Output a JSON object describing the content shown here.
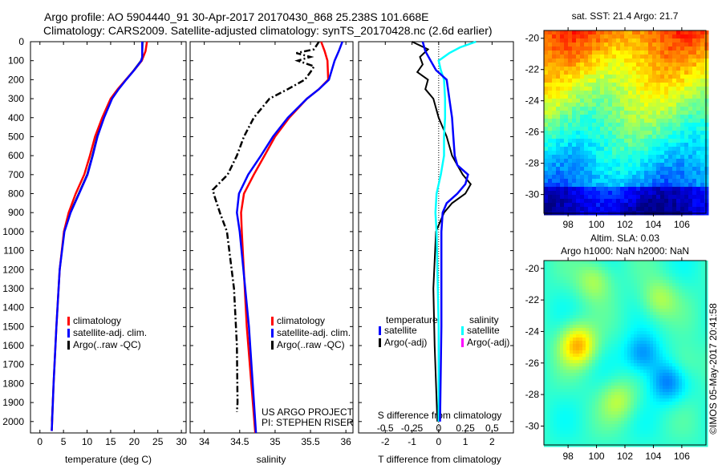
{
  "title_line1": "Argo profile: AO 5904440_91 30-Apr-2017 20170430_868 25.238S 101.668E",
  "title_line2": "Climatology: CARS2009. Satellite-adjusted climatology: synTS_20170428.nc (2.6d earlier)",
  "timestamp": "©IMOS 05-May-2017 20:41:58",
  "credit_line1": "US ARGO PROJECT",
  "credit_line2": "PI: STEPHEN RISER",
  "colors": {
    "climatology": "#ff0000",
    "satellite": "#0000ff",
    "argo": "#000000",
    "salinity_satellite": "#00ffff",
    "salinity_argo": "#ff00ff"
  },
  "chart_data": [
    {
      "type": "line",
      "name": "temperature",
      "xlabel": "temperature (deg C)",
      "ylabel": "",
      "xlim": [
        -2,
        31
      ],
      "ylim": [
        2060,
        0
      ],
      "xticks": [
        "0",
        "5",
        "10",
        "15",
        "20",
        "25",
        "30"
      ],
      "yticks": [
        "0",
        "100",
        "200",
        "300",
        "400",
        "500",
        "600",
        "700",
        "800",
        "900",
        "1000",
        "1100",
        "1200",
        "1300",
        "1400",
        "1500",
        "1600",
        "1700",
        "1800",
        "1900",
        "2000"
      ],
      "legend": [
        "climatology",
        "satellite-adj. clim.",
        "Argo(..raw -QC)"
      ],
      "series": [
        {
          "name": "climatology",
          "depth": [
            0,
            50,
            100,
            150,
            200,
            250,
            300,
            400,
            500,
            600,
            700,
            800,
            900,
            1000,
            1200,
            1500,
            1800,
            2050
          ],
          "values": [
            22.7,
            22.4,
            21.6,
            20,
            18.2,
            16.5,
            15,
            13.2,
            11.7,
            10.6,
            9.4,
            7.6,
            6.1,
            5.1,
            4.2,
            3.5,
            2.9,
            2.5
          ]
        },
        {
          "name": "satellite-adj. clim.",
          "depth": [
            0,
            80,
            100,
            150,
            200,
            250,
            300,
            400,
            500,
            600,
            700,
            800,
            900,
            1000,
            1200,
            1500,
            1800,
            2050
          ],
          "values": [
            21.7,
            21.7,
            21.5,
            20,
            18.3,
            16.7,
            15.3,
            13.6,
            12.2,
            11.2,
            10.1,
            8.3,
            6.5,
            5.2,
            4.2,
            3.5,
            2.9,
            2.5
          ]
        },
        {
          "name": "Argo(..raw -QC)",
          "depth": [
            0,
            80,
            100,
            150,
            200,
            250,
            300,
            400,
            500,
            600,
            700,
            800,
            900,
            1000,
            1200,
            1500,
            1800,
            2000
          ],
          "values": [
            21.8,
            21.7,
            21.4,
            19.9,
            18.2,
            16.6,
            15.2,
            13.5,
            12.1,
            11.1,
            10,
            8.2,
            6.4,
            5.1,
            4.2,
            3.5,
            2.9,
            2.5
          ]
        }
      ]
    },
    {
      "type": "line",
      "name": "salinity",
      "xlabel": "salinity",
      "xlim": [
        33.8,
        36.1
      ],
      "ylim": [
        2060,
        0
      ],
      "xticks": [
        "34",
        "34.5",
        "35",
        "35.5",
        "36"
      ],
      "legend": [
        "climatology",
        "satellite-adj. clim.",
        "Argo(..raw -QC)"
      ],
      "series": [
        {
          "name": "climatology",
          "depth": [
            0,
            50,
            100,
            200,
            250,
            300,
            400,
            500,
            600,
            700,
            800,
            900,
            1000,
            1500,
            2060
          ],
          "values": [
            35.65,
            35.7,
            35.74,
            35.75,
            35.62,
            35.45,
            35.2,
            35.0,
            34.85,
            34.7,
            34.56,
            34.52,
            34.53,
            34.6,
            34.72
          ]
        },
        {
          "name": "satellite-adj. clim.",
          "depth": [
            0,
            50,
            100,
            200,
            250,
            300,
            400,
            500,
            600,
            700,
            800,
            900,
            1000,
            1500,
            2060
          ],
          "values": [
            35.95,
            35.9,
            35.84,
            35.76,
            35.62,
            35.45,
            35.18,
            34.97,
            34.8,
            34.62,
            34.49,
            34.46,
            34.5,
            34.63,
            34.73
          ]
        },
        {
          "name": "Argo(..raw -QC)",
          "depth": [
            0,
            40,
            60,
            80,
            100,
            130,
            160,
            200,
            250,
            300,
            400,
            500,
            600,
            700,
            780,
            820,
            900,
            1000,
            1300,
            1600,
            1900,
            1950
          ],
          "values": [
            35.62,
            35.55,
            35.3,
            35.5,
            35.32,
            35.55,
            35.5,
            35.42,
            35.18,
            34.92,
            34.7,
            34.56,
            34.46,
            34.33,
            34.12,
            34.15,
            34.22,
            34.32,
            34.42,
            34.46,
            34.47,
            34.46
          ]
        }
      ]
    },
    {
      "type": "line",
      "name": "difference",
      "xlabel": "T difference from climatology",
      "xlabel2": "S difference from climatology",
      "xlim": [
        -3,
        2.8
      ],
      "ylim": [
        2060,
        0
      ],
      "xticks": [
        "-2",
        "-1",
        "0",
        "1",
        "2"
      ],
      "xticks2": [
        "-0.5",
        "-0.25",
        "0",
        "0.25",
        "0.5"
      ],
      "legend_title_t": "temperature",
      "legend_title_s": "salinity",
      "legend_t": [
        "satellite",
        "Argo(-adj)"
      ],
      "legend_s": [
        "satellite",
        "Argo(-adj)"
      ],
      "series": [
        {
          "name": "T satellite",
          "units": "degC",
          "depth": [
            0,
            50,
            100,
            150,
            200,
            300,
            400,
            500,
            600,
            650,
            700,
            750,
            800,
            850,
            900,
            1000,
            1500,
            2000
          ],
          "values": [
            -0.6,
            -0.5,
            -0.3,
            -0.1,
            0.3,
            0.4,
            0.5,
            0.55,
            0.6,
            0.7,
            1.1,
            1.0,
            0.7,
            0.3,
            0.15,
            0.1,
            0.1,
            0.05
          ]
        },
        {
          "name": "T Argo(-adj)",
          "units": "degC",
          "depth": [
            0,
            40,
            80,
            120,
            160,
            200,
            250,
            300,
            400,
            500,
            600,
            650,
            700,
            750,
            800,
            850,
            900,
            1000,
            1300,
            1600,
            2000
          ],
          "values": [
            -1.0,
            -0.4,
            -0.7,
            -0.6,
            -0.8,
            -0.4,
            -0.5,
            -0.2,
            0,
            0.3,
            0.5,
            0.7,
            0.9,
            1.2,
            1.0,
            0.5,
            0.2,
            -0.1,
            -0.2,
            -0.15,
            -0.05
          ]
        },
        {
          "name": "S satellite",
          "units": "psu",
          "depth": [
            0,
            30,
            60,
            100,
            150,
            200,
            300,
            400,
            500,
            600,
            700,
            800,
            900,
            1000,
            1500,
            2000
          ],
          "values": [
            0.35,
            0.2,
            0.1,
            0.0,
            0.02,
            0.05,
            0.06,
            0.06,
            0.05,
            0.05,
            0.02,
            -0.02,
            -0.03,
            -0.02,
            0,
            0
          ]
        }
      ]
    },
    {
      "type": "heatmap",
      "name": "sst-map",
      "title": "sat. SST: 21.4 Argo: 21.7",
      "xticks": [
        "98",
        "100",
        "102",
        "104",
        "106"
      ],
      "yticks": [
        "-20",
        "-22",
        "-24",
        "-26",
        "-28",
        "-30"
      ],
      "xlim": [
        96.3,
        107.7
      ],
      "ylim": [
        -31.2,
        -19.5
      ]
    },
    {
      "type": "heatmap",
      "name": "sla-map",
      "title1": "Altim. SLA: 0.03",
      "title2": "Argo h1000: NaN h2000: NaN",
      "xticks": [
        "98",
        "100",
        "102",
        "104",
        "106"
      ],
      "yticks": [
        "-20",
        "-22",
        "-24",
        "-26",
        "-28",
        "-30"
      ],
      "xlim": [
        96.3,
        107.7
      ],
      "ylim": [
        -31.2,
        -19.5
      ]
    }
  ]
}
